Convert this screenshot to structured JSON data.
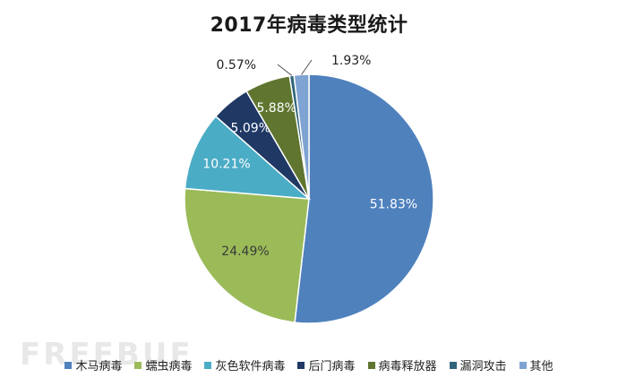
{
  "chart_data": {
    "type": "pie",
    "title": "2017年病毒类型统计",
    "slices": [
      {
        "name": "木马病毒",
        "value": 51.83,
        "label": "51.83%",
        "color": "#4f81bd"
      },
      {
        "name": "蠕虫病毒",
        "value": 24.49,
        "label": "24.49%",
        "color": "#9bbb59"
      },
      {
        "name": "灰色软件病毒",
        "value": 10.21,
        "label": "10.21%",
        "color": "#4bacc6"
      },
      {
        "name": "后门病毒",
        "value": 5.09,
        "label": "5.09%",
        "color": "#1f3864"
      },
      {
        "name": "病毒释放器",
        "value": 5.88,
        "label": "5.88%",
        "color": "#5f7530"
      },
      {
        "name": "漏洞攻击",
        "value": 0.57,
        "label": "0.57%",
        "color": "#31657a"
      },
      {
        "name": "其他",
        "value": 1.93,
        "label": "1.93%",
        "color": "#7fa3d3"
      }
    ],
    "legend_position": "bottom"
  },
  "watermark_text": "FREEBUF"
}
